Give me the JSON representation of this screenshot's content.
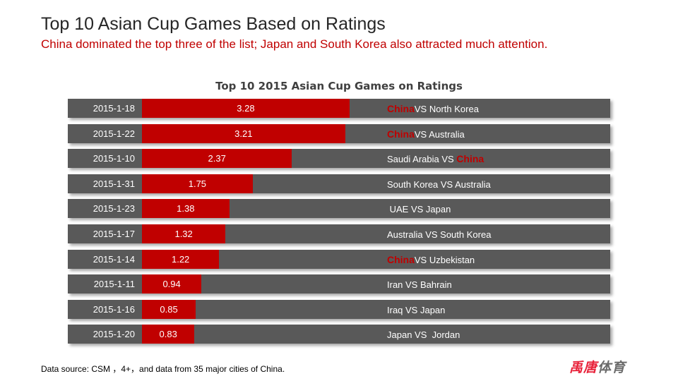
{
  "header": {
    "title": "Top 10 Asian Cup Games Based on Ratings",
    "subtitle": "China dominated the top three of the list; Japan and South Korea also attracted much attention."
  },
  "footer": {
    "source": "Data source: CSM  ，4+，and data from 35 major cities of China.",
    "logo_red": "禹唐",
    "logo_grey": "体育"
  },
  "colors": {
    "bar": "#c00000",
    "track": "#595959",
    "china": "#c00000"
  },
  "chart_data": {
    "type": "bar",
    "title": "Top 10 2015 Asian Cup Games on Ratings",
    "xlabel": "",
    "ylabel": "Ratings",
    "xlim": [
      0,
      7.4
    ],
    "categories": [
      "2015-1-18",
      "2015-1-22",
      "2015-1-10",
      "2015-1-31",
      "2015-1-23",
      "2015-1-17",
      "2015-1-14",
      "2015-1-11",
      "2015-1-16",
      "2015-1-20"
    ],
    "values": [
      3.28,
      3.21,
      2.37,
      1.75,
      1.38,
      1.32,
      1.22,
      0.94,
      0.85,
      0.83
    ],
    "matches": [
      {
        "pre": "",
        "china": "China",
        "post": "VS North Korea"
      },
      {
        "pre": "",
        "china": "China",
        "post": "VS Australia"
      },
      {
        "pre": "Saudi Arabia VS ",
        "china": "China",
        "post": ""
      },
      {
        "pre": "South Korea VS Australia",
        "china": "",
        "post": ""
      },
      {
        "pre": " UAE VS Japan",
        "china": "",
        "post": ""
      },
      {
        "pre": "Australia VS South Korea",
        "china": "",
        "post": ""
      },
      {
        "pre": "",
        "china": "China",
        "post": "VS Uzbekistan"
      },
      {
        "pre": "Iran VS Bahrain",
        "china": "",
        "post": ""
      },
      {
        "pre": "Iraq VS Japan",
        "china": "",
        "post": ""
      },
      {
        "pre": "Japan VS  Jordan",
        "china": "",
        "post": ""
      }
    ]
  }
}
